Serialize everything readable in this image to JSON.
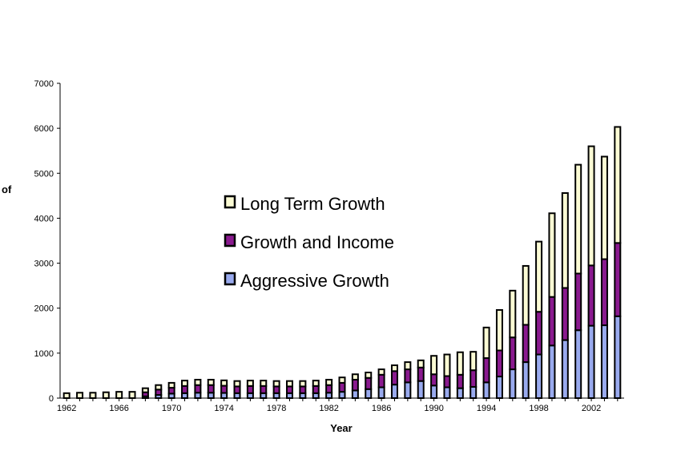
{
  "chart_data": {
    "type": "bar",
    "stacked": true,
    "title": "",
    "xlabel": "Year",
    "ylabel": "of",
    "ylim": [
      0,
      7000
    ],
    "yticks": [
      0,
      1000,
      2000,
      3000,
      4000,
      5000,
      6000,
      7000
    ],
    "xticks": [
      "1962",
      "1966",
      "1970",
      "1974",
      "1978",
      "1982",
      "1986",
      "1990",
      "1994",
      "1998",
      "2002"
    ],
    "categories": [
      "1962",
      "1963",
      "1964",
      "1965",
      "1966",
      "1967",
      "1968",
      "1969",
      "1970",
      "1971",
      "1972",
      "1973",
      "1974",
      "1975",
      "1976",
      "1977",
      "1978",
      "1979",
      "1980",
      "1981",
      "1982",
      "1983",
      "1984",
      "1985",
      "1986",
      "1987",
      "1988",
      "1989",
      "1990",
      "1991",
      "1992",
      "1993",
      "1994",
      "1995",
      "1996",
      "1997",
      "1998",
      "1999",
      "2000",
      "2001",
      "2002",
      "2003",
      "2004"
    ],
    "series": [
      {
        "name": "Aggressive Growth",
        "color": "#99aaee",
        "values": [
          0,
          0,
          0,
          0,
          0,
          0,
          40,
          70,
          100,
          110,
          120,
          120,
          115,
          110,
          110,
          110,
          110,
          110,
          110,
          110,
          120,
          140,
          170,
          200,
          240,
          300,
          350,
          380,
          280,
          240,
          220,
          250,
          350,
          480,
          640,
          800,
          970,
          1170,
          1290,
          1510,
          1610,
          1620,
          1820
        ]
      },
      {
        "name": "Growth and Income",
        "color": "#8a1a8f",
        "values": [
          0,
          0,
          0,
          0,
          0,
          0,
          90,
          120,
          130,
          160,
          170,
          170,
          160,
          150,
          160,
          160,
          150,
          150,
          150,
          160,
          170,
          200,
          240,
          250,
          280,
          300,
          290,
          300,
          250,
          250,
          300,
          370,
          540,
          580,
          710,
          830,
          950,
          1080,
          1160,
          1260,
          1340,
          1470,
          1630
        ]
      },
      {
        "name": "Long Term Growth",
        "color": "#fbfbd4",
        "values": [
          110,
          120,
          120,
          130,
          140,
          140,
          90,
          100,
          110,
          120,
          120,
          120,
          120,
          120,
          120,
          120,
          120,
          120,
          120,
          120,
          120,
          120,
          120,
          120,
          120,
          130,
          160,
          160,
          410,
          480,
          500,
          410,
          680,
          900,
          1040,
          1310,
          1560,
          1860,
          2110,
          2420,
          2650,
          2280,
          2580
        ]
      }
    ],
    "legend": [
      "Long Term Growth",
      "Growth and Income",
      "Aggressive Growth"
    ],
    "legend_position": "center-left inside plot"
  }
}
